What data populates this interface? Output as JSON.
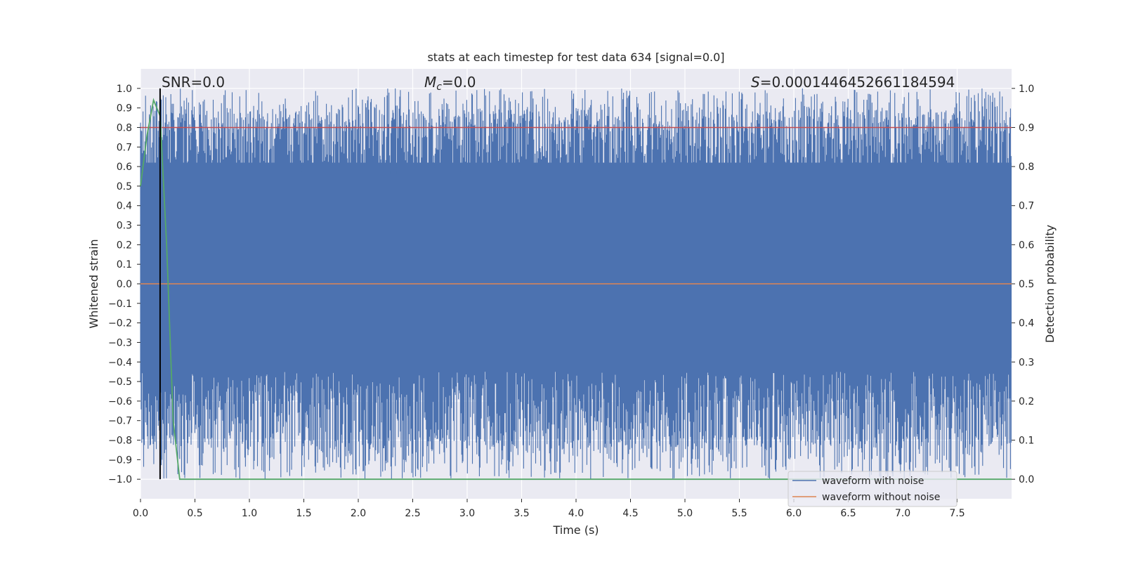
{
  "chart_data": {
    "type": "line",
    "title": "stats at each timestep for test data 634 [signal=0.0]",
    "xlabel": "Time (s)",
    "ylabel": "Whitened strain",
    "ylabel_right": "Detection probability",
    "xlim": [
      0.0,
      8.0
    ],
    "ylim": [
      -1.1,
      1.1
    ],
    "ylim_right": [
      -0.05,
      1.05
    ],
    "x_ticks": [
      "0.0",
      "0.5",
      "1.0",
      "1.5",
      "2.0",
      "2.5",
      "3.0",
      "3.5",
      "4.0",
      "4.5",
      "5.0",
      "5.5",
      "6.0",
      "6.5",
      "7.0",
      "7.5"
    ],
    "y_ticks": [
      "1.0",
      "0.9",
      "0.8",
      "0.7",
      "0.6",
      "0.5",
      "0.4",
      "0.3",
      "0.2",
      "0.1",
      "0.0",
      "−0.1",
      "−0.2",
      "−0.3",
      "−0.4",
      "−0.5",
      "−0.6",
      "−0.7",
      "−0.8",
      "−0.9",
      "−1.0"
    ],
    "y_right_ticks": [
      "1.0",
      "0.9",
      "0.8",
      "0.7",
      "0.6",
      "0.5",
      "0.4",
      "0.3",
      "0.2",
      "0.1",
      "0.0"
    ],
    "grid": true,
    "legend_position": "lower-right",
    "annotations": {
      "snr": "SNR=0.0",
      "mc_symbol": "M",
      "mc_sub": "c",
      "mc_value": "=0.0",
      "s_symbol": "S",
      "s_value": "=0.0001446452661184594"
    },
    "series": [
      {
        "name": "waveform with noise",
        "color": "#4c72b0",
        "description": "whitened noisy strain spanning approx -1.0 to 1.0 across the full time range"
      },
      {
        "name": "waveform without noise",
        "color": "#dd8452",
        "y_constant": 0.0
      }
    ],
    "detection_probability": {
      "axis": "right",
      "color": "#55a868",
      "x": [
        0.0,
        0.06,
        0.12,
        0.18,
        0.24,
        0.3,
        0.36,
        0.42,
        8.0
      ],
      "y": [
        0.75,
        0.88,
        0.97,
        0.93,
        0.6,
        0.15,
        0.0,
        0.0,
        0.0
      ]
    },
    "threshold": {
      "axis": "right",
      "value": 0.9,
      "color": "#c44e52"
    },
    "marker_line": {
      "x": 0.18,
      "color": "#000000"
    }
  },
  "colors": {
    "plot_background": "#eaeaf2",
    "grid": "#ffffff"
  }
}
